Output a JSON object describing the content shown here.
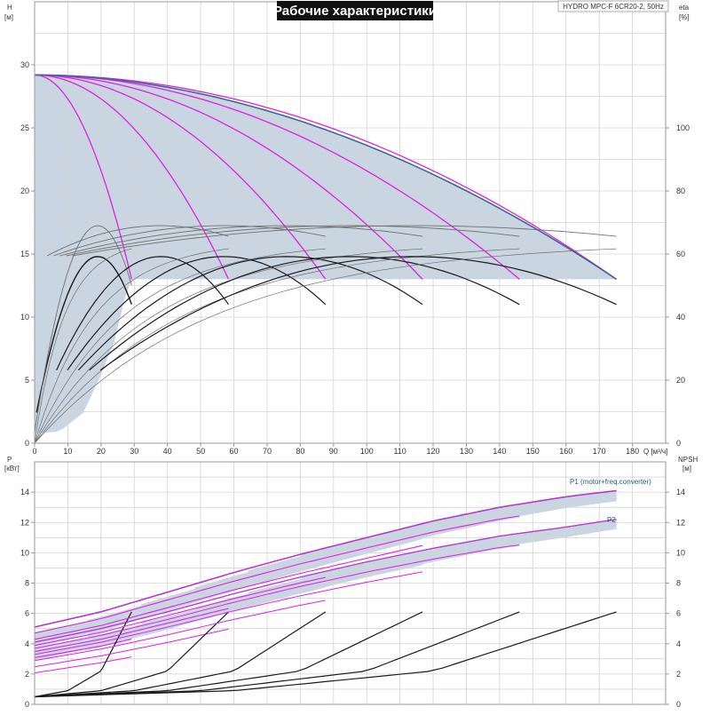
{
  "title": "Рабочие характеристики",
  "model": "HYDRO MPC-F 6CR20-2, 50Hz",
  "colors": {
    "region_fill": "#c9d6e2",
    "envelope": "#3d6891",
    "variable_speed": "#e020e0",
    "efficiency": "#707070",
    "fixed_curve": "#1a1a1a",
    "frame": "#9a9a9a",
    "grid": "#d4d4d4"
  },
  "axes": {
    "q": {
      "label": "Q [м³/ч]",
      "ticks": [
        "0",
        "10",
        "20",
        "30",
        "40",
        "50",
        "60",
        "70",
        "80",
        "90",
        "100",
        "110",
        "120",
        "130",
        "140",
        "150",
        "160",
        "170",
        "180"
      ],
      "range": [
        0,
        190
      ]
    },
    "h": {
      "label": "H",
      "unit": "[м]",
      "ticks": [
        "0",
        "5",
        "10",
        "15",
        "20",
        "25",
        "30"
      ],
      "range": [
        0,
        35
      ]
    },
    "eta": {
      "label": "eta",
      "unit": "[%]",
      "ticks": [
        "0",
        "20",
        "40",
        "60",
        "80",
        "100"
      ],
      "range": [
        0,
        140
      ]
    },
    "p": {
      "label": "P",
      "unit": "[кВт]",
      "ticks": [
        "0",
        "2",
        "4",
        "6",
        "8",
        "10",
        "12",
        "14"
      ],
      "range": [
        0,
        16
      ]
    },
    "npsh": {
      "label": "NPSH",
      "unit": "[м]",
      "ticks": [
        "0",
        "2",
        "4",
        "6",
        "8",
        "10",
        "12",
        "14"
      ],
      "range": [
        0,
        16
      ]
    }
  },
  "chart_data": [
    {
      "type": "line",
      "panel": "head",
      "xlabel": "Q [м³/ч]",
      "ylabel": "H [м]",
      "y2label": "eta [%]",
      "xlim": [
        0,
        190
      ],
      "ylim": [
        0,
        35
      ],
      "y2lim": [
        0,
        140
      ],
      "grid": true,
      "pumps": [
        1,
        2,
        3,
        4,
        5,
        6
      ],
      "q_per_pump_max": 29.2,
      "h_shutoff": 29.2,
      "h_min_operating": 13.0,
      "h_at_max_flow": 13.0,
      "fixed_speed_peak_head": 14.8,
      "fixed_speed_peak_q": 19,
      "fixed_speed_end_head": 11.0,
      "efficiency_peak": 69,
      "efficiency_peak_q_per_pump": 19,
      "envelope": "maximum head curve from 29.2 m at 0 m³/ч to 13.0 m at 175 m³/ч",
      "min_head_line": 13.0
    },
    {
      "type": "line",
      "panel": "power",
      "xlabel": "Q [м³/ч]",
      "ylabel": "P [кВт]",
      "y2label": "NPSH [м]",
      "xlim": [
        0,
        190
      ],
      "ylim": [
        0,
        16
      ],
      "grid": true,
      "series": [
        {
          "name": "P1 (motor+freq.converter)",
          "x": [
            0,
            20,
            40,
            60,
            80,
            100,
            120,
            140,
            160,
            175
          ],
          "values": [
            5.1,
            6.1,
            7.4,
            8.7,
            9.9,
            11.0,
            12.1,
            13.0,
            13.7,
            14.1
          ]
        },
        {
          "name": "P2",
          "x": [
            0,
            20,
            40,
            60,
            80,
            100,
            120,
            140,
            160,
            175
          ],
          "values": [
            4.1,
            5.0,
            6.1,
            7.3,
            8.4,
            9.4,
            10.3,
            11.1,
            11.7,
            12.2
          ]
        }
      ],
      "npsh_per_pump": {
        "x": [
          0,
          10,
          20,
          29.2
        ],
        "values": [
          0.5,
          0.9,
          2.2,
          6.1
        ]
      }
    }
  ]
}
